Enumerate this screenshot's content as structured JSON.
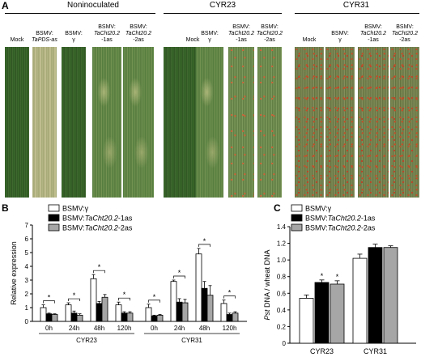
{
  "panelA": {
    "letter": "A",
    "groups": [
      {
        "title": "Noninoculated",
        "leaves": [
          {
            "label_lines": [
              "Mock"
            ],
            "style": "healthy"
          },
          {
            "label_lines": [
              "BSMV:",
              "TaPDS-as"
            ],
            "style": "bleached"
          },
          {
            "label_lines": [
              "BSMV:",
              "γ"
            ],
            "style": "healthy"
          },
          {
            "label_lines": [
              "BSMV:",
              "TaCht20.2",
              "-1as"
            ],
            "style": "mottled"
          },
          {
            "label_lines": [
              "BSMV:",
              "TaCht20.2",
              "-2as"
            ],
            "style": "mottled"
          }
        ]
      },
      {
        "title": "CYR23",
        "leaves": [
          {
            "label_lines": [
              "Mock"
            ],
            "style": "healthy"
          },
          {
            "label_lines": [
              "BSMV:",
              "γ"
            ],
            "style": "mottled"
          },
          {
            "label_lines": [
              "BSMV:",
              "TaCht20.2",
              "-1as"
            ],
            "style": "rust-light"
          },
          {
            "label_lines": [
              "BSMV:",
              "TaCht20.2",
              "-2as"
            ],
            "style": "rust-light"
          }
        ]
      },
      {
        "title": "CYR31",
        "leaves": [
          {
            "label_lines": [
              "Mock"
            ],
            "style": "rust"
          },
          {
            "label_lines": [
              "BSMV:",
              "γ"
            ],
            "style": "rust"
          },
          {
            "label_lines": [
              "BSMV:",
              "TaCht20.2",
              "-1as"
            ],
            "style": "rust"
          },
          {
            "label_lines": [
              "BSMV:",
              "TaCht20.2",
              "-2as"
            ],
            "style": "rust"
          }
        ]
      }
    ]
  },
  "panelB": {
    "letter": "B",
    "chart_data": {
      "type": "bar",
      "ylabel": "Relative expression",
      "ylim": [
        0,
        7
      ],
      "yticks": [
        0,
        1,
        2,
        3,
        4,
        5,
        6,
        7
      ],
      "legend": [
        "BSMV:γ",
        "BSMV:TaCht20.2-1as",
        "BSMV:TaCht20.2-2as"
      ],
      "legend_italic_part": "TaCht20.2",
      "categories": [
        "0h",
        "24h",
        "48h",
        "120h",
        "0h",
        "24h",
        "48h",
        "120h"
      ],
      "groups": [
        {
          "label": "CYR23",
          "from": 0,
          "to": 3
        },
        {
          "label": "CYR31",
          "from": 4,
          "to": 7
        }
      ],
      "series": [
        {
          "colour": "#ffffff",
          "values": [
            1.0,
            1.2,
            3.1,
            1.2,
            1.0,
            2.9,
            4.9,
            1.3
          ],
          "errors": [
            0.2,
            0.15,
            0.3,
            0.2,
            0.25,
            0.1,
            0.4,
            0.25
          ]
        },
        {
          "colour": "#000000",
          "values": [
            0.55,
            0.6,
            1.3,
            0.6,
            0.4,
            1.4,
            2.4,
            0.5
          ],
          "errors": [
            0.05,
            0.15,
            0.15,
            0.1,
            0.05,
            0.25,
            0.5,
            0.1
          ]
        },
        {
          "colour": "#a6a6a6",
          "values": [
            0.5,
            0.45,
            1.75,
            0.6,
            0.45,
            1.35,
            1.9,
            0.6
          ],
          "errors": [
            0.05,
            0.1,
            0.2,
            0.1,
            0.05,
            0.25,
            0.7,
            0.1
          ]
        }
      ],
      "significance_mark": "*"
    }
  },
  "panelC": {
    "letter": "C",
    "chart_data": {
      "type": "bar",
      "ylabel_italic": "Pst",
      "ylabel_rest": " DNA / wheat DNA",
      "ylim": [
        0,
        1.4
      ],
      "yticks": [
        "0",
        "0.2",
        "0.4",
        "0.6",
        "0.8",
        "1.0",
        "1.2",
        "1.4"
      ],
      "legend": [
        "BSMV:γ",
        "BSMV:TaCht20.2-1as",
        "BSMV:TaCht20.2-2as"
      ],
      "legend_italic_part": "TaCht20.2",
      "categories": [
        "CYR23",
        "CYR31"
      ],
      "series": [
        {
          "colour": "#ffffff",
          "values": [
            0.54,
            1.02
          ],
          "errors": [
            0.04,
            0.05
          ]
        },
        {
          "colour": "#000000",
          "values": [
            0.73,
            1.15
          ],
          "errors": [
            0.03,
            0.04
          ]
        },
        {
          "colour": "#a6a6a6",
          "values": [
            0.71,
            1.15
          ],
          "errors": [
            0.04,
            0.02
          ]
        }
      ],
      "significance_mark": "*"
    }
  }
}
